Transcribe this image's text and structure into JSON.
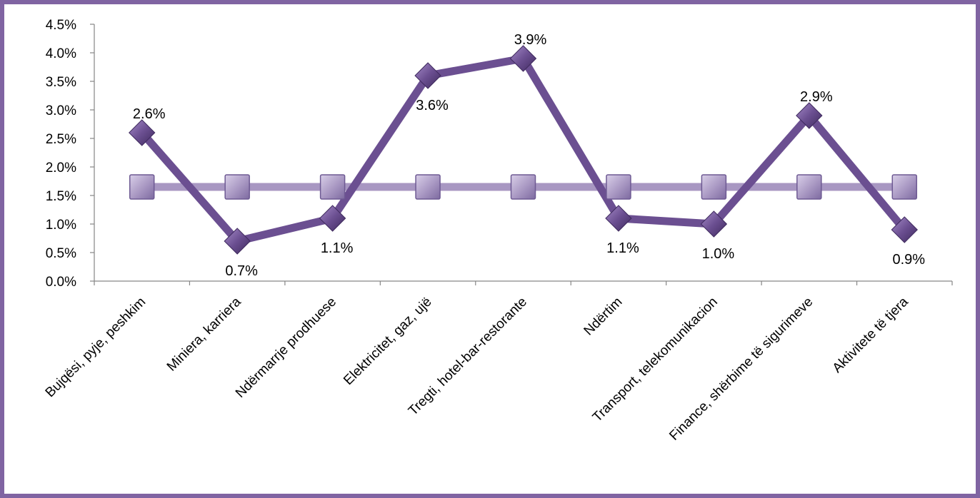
{
  "chart_data": {
    "type": "line",
    "title": "",
    "xlabel": "",
    "ylabel": "",
    "categories": [
      "Bujqësi, pyje, peshkim",
      "Miniera, karriera",
      "Ndërmarrje prodhuese",
      "Elektricitet, gaz, ujë",
      "Tregti, hotel-bar-restorante",
      "Ndërtim",
      "Transport, telekomunikacion",
      "Finance, shërbime të sigurimeve",
      "Aktivitete të tjera"
    ],
    "y_ticks": [
      "0.0%",
      "0.5%",
      "1.0%",
      "1.5%",
      "2.0%",
      "2.5%",
      "3.0%",
      "3.5%",
      "4.0%",
      "4.5%"
    ],
    "ylim": [
      0,
      4.5
    ],
    "grid": false,
    "legend": "none",
    "series": [
      {
        "marker": "diamond",
        "color": "#6b4f91",
        "values": [
          2.6,
          0.7,
          1.1,
          3.6,
          3.9,
          1.1,
          1.0,
          2.9,
          0.9
        ],
        "labels": [
          "2.6%",
          "0.7%",
          "1.1%",
          "3.6%",
          "3.9%",
          "1.1%",
          "1.0%",
          "2.9%",
          "0.9%"
        ]
      },
      {
        "marker": "square",
        "color": "#a897c2",
        "values": [
          1.65,
          1.65,
          1.65,
          1.65,
          1.65,
          1.65,
          1.65,
          1.65,
          1.65
        ]
      }
    ]
  },
  "colors": {
    "frame": "#8064a2",
    "axis": "#868686",
    "series_main": "#6b4f91",
    "series_avg": "#a897c2"
  }
}
